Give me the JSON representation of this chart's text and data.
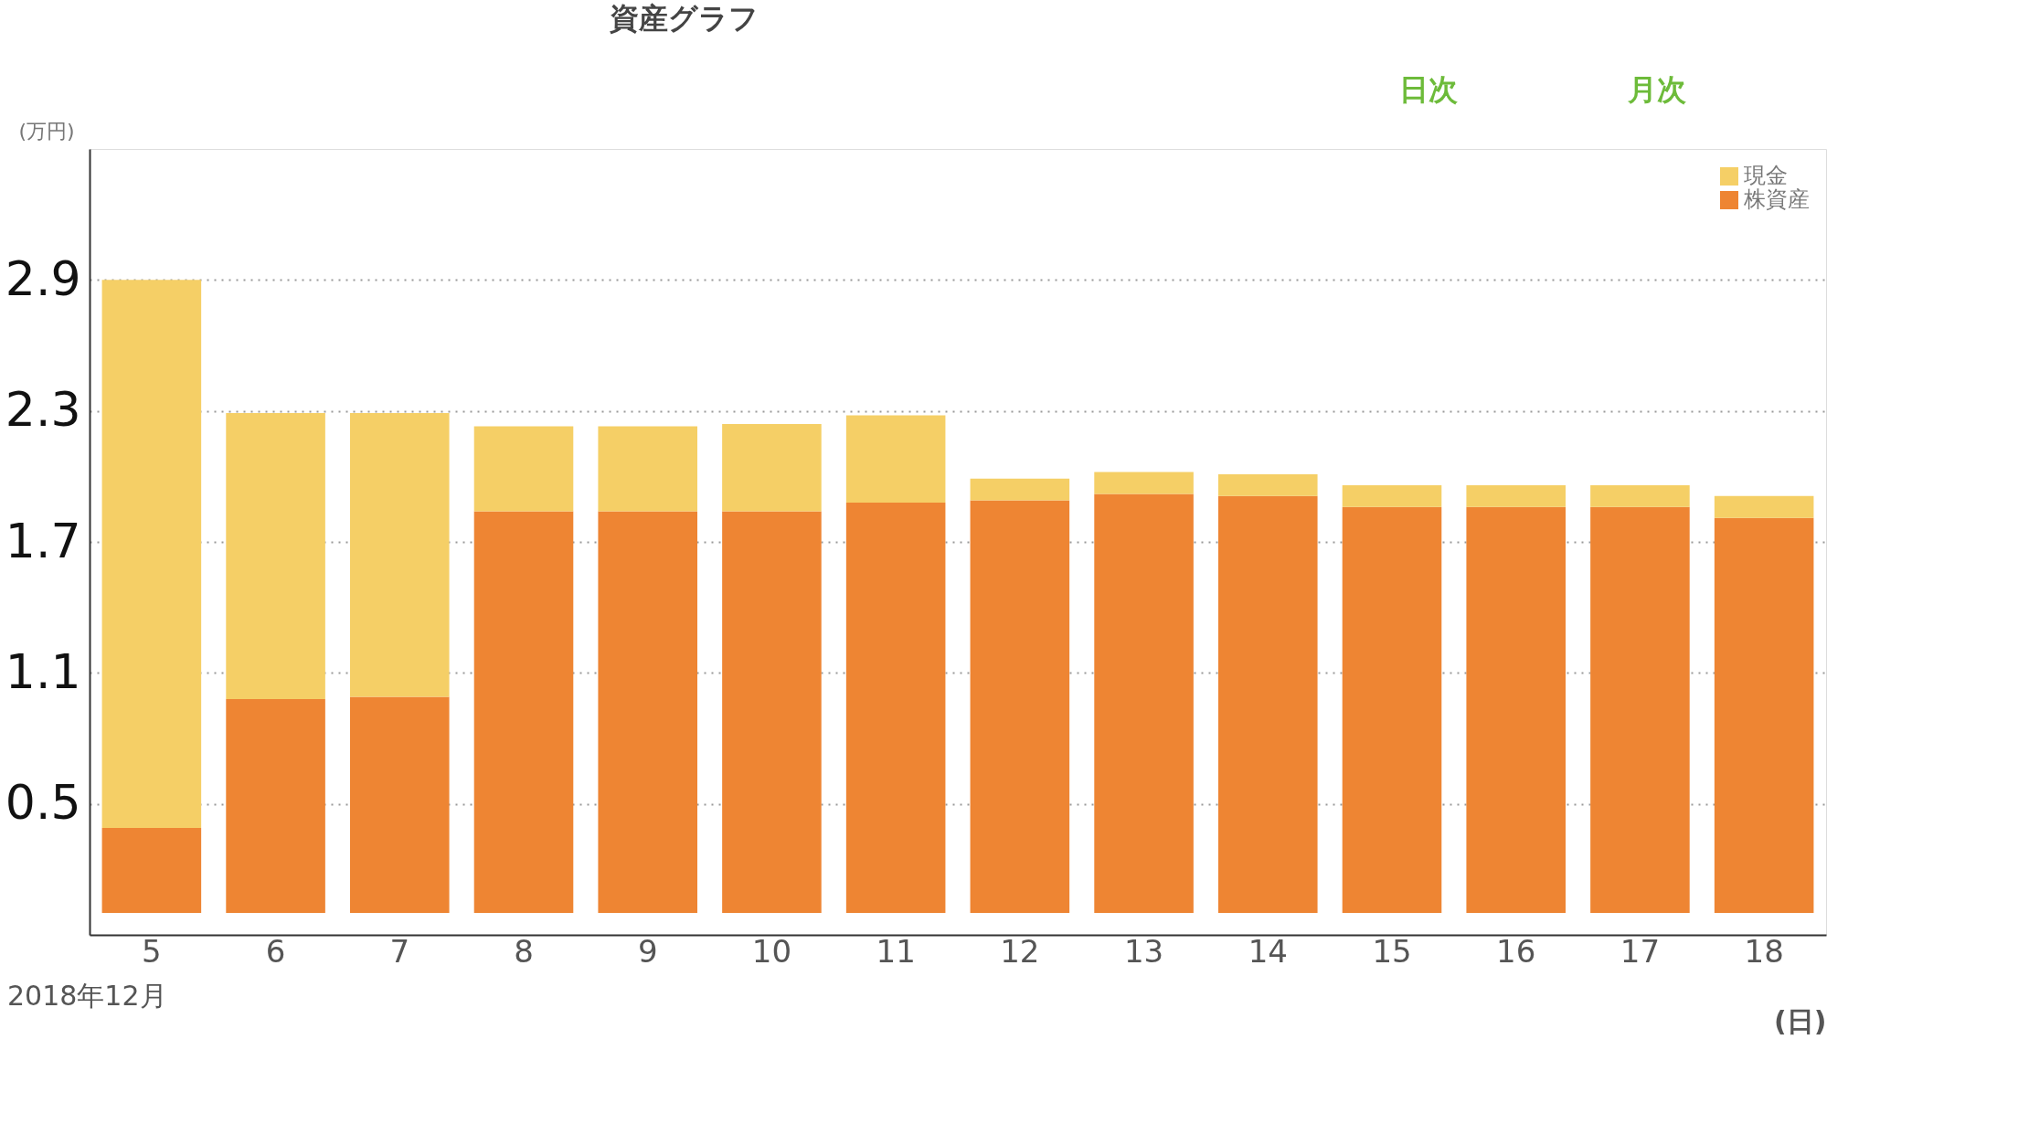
{
  "chart_data": {
    "type": "bar",
    "title": "資産グラフ",
    "ylabel": "(万円)",
    "xlabel": "(日)",
    "annotations": [
      "日次",
      "月次",
      "2018年12月"
    ],
    "categories": [
      "5",
      "6",
      "7",
      "8",
      "9",
      "10",
      "11",
      "12",
      "13",
      "14",
      "15",
      "16",
      "17",
      "18"
    ],
    "stacked": true,
    "series": [
      {
        "name": "株資産",
        "color": "#ee8533",
        "values": [
          0.39,
          0.98,
          0.99,
          1.84,
          1.84,
          1.84,
          1.88,
          1.89,
          1.92,
          1.91,
          1.86,
          1.86,
          1.86,
          1.81
        ]
      },
      {
        "name": "現金",
        "color": "#f5cf66",
        "values": [
          2.51,
          1.31,
          1.3,
          0.39,
          0.39,
          0.4,
          0.4,
          0.1,
          0.1,
          0.1,
          0.1,
          0.1,
          0.1,
          0.1
        ]
      }
    ],
    "ylim": [
      -0.1,
      3.5
    ],
    "yticks": [
      0.5,
      1.1,
      1.7,
      2.3,
      2.9
    ],
    "grid": "y",
    "legend": "top right"
  }
}
